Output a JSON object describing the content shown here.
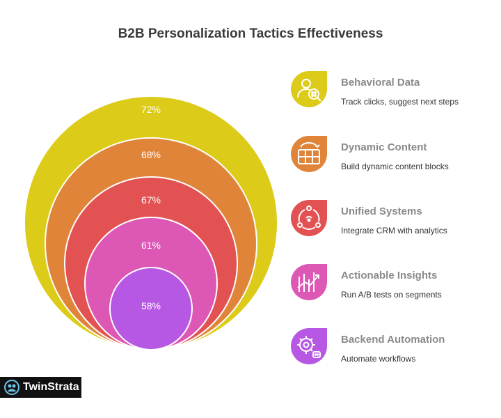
{
  "title": "B2B Personalization Tactics Effectiveness",
  "chart_data": {
    "type": "nested-circles",
    "values": [
      72,
      68,
      67,
      61,
      58
    ],
    "labels": [
      "72%",
      "68%",
      "67%",
      "61%",
      "58%"
    ],
    "colors": [
      "#dccb18",
      "#e0843a",
      "#e25252",
      "#dd57b4",
      "#b658e3"
    ]
  },
  "items": [
    {
      "title": "Behavioral Data",
      "desc": "Track clicks, suggest next steps",
      "color": "#dccb18",
      "icon": "user-search-icon"
    },
    {
      "title": "Dynamic Content",
      "desc": "Build dynamic content blocks",
      "color": "#e0843a",
      "icon": "content-blocks-icon"
    },
    {
      "title": "Unified Systems",
      "desc": "Integrate CRM with analytics",
      "color": "#e25252",
      "icon": "network-icon"
    },
    {
      "title": "Actionable Insights",
      "desc": "Run A/B tests on segments",
      "color": "#dd57b4",
      "icon": "chart-trend-icon"
    },
    {
      "title": "Backend Automation",
      "desc": "Automate workflows",
      "color": "#b658e3",
      "icon": "gear-bot-icon"
    }
  ],
  "logo": {
    "text": "TwinStrata"
  }
}
